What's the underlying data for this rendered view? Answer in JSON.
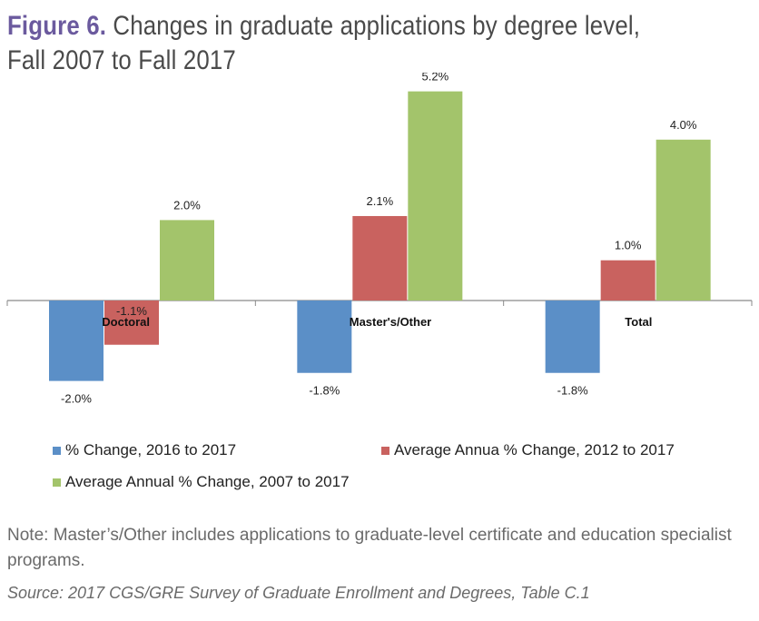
{
  "figure": {
    "label": "Figure 6.",
    "title_line1": "Changes in graduate applications by degree level,",
    "title_line2": "Fall 2007 to Fall 2017"
  },
  "chart_data": {
    "type": "bar",
    "categories": [
      "Doctoral",
      "Master's/Other",
      "Total"
    ],
    "series": [
      {
        "name": "% Change, 2016 to 2017",
        "color": "#5b8fc7",
        "values": [
          -2.0,
          -1.8,
          -1.8
        ],
        "labels": [
          "-2.0%",
          "-1.8%",
          "-1.8%"
        ]
      },
      {
        "name": "Average Annua % Change, 2012 to 2017",
        "color": "#c9625f",
        "values": [
          -1.1,
          2.1,
          1.0
        ],
        "labels": [
          "-1.1%",
          "2.1%",
          "1.0%"
        ]
      },
      {
        "name": "Average Annual % Change, 2007 to 2017",
        "color": "#a3c46b",
        "values": [
          2.0,
          5.2,
          4.0
        ],
        "labels": [
          "2.0%",
          "5.2%",
          "4.0%"
        ]
      }
    ],
    "legend_position": "bottom",
    "grid": false
  },
  "note": "Note: Master’s/Other includes applications to graduate-level certificate and education specialist programs.",
  "source": "Source: 2017 CGS/GRE Survey of Graduate Enrollment and Degrees, Table C.1"
}
